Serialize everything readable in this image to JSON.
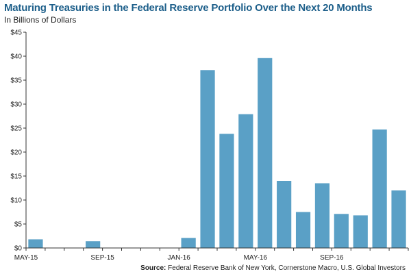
{
  "title": "Maturing Treasuries in the Federal Reserve Portfolio Over the Next 20 Months",
  "subtitle": "In Billions of Dollars",
  "source_label": "Source:",
  "source_text": "Federal Reserve Bank of New York, Cornerstone Macro, U.S. Global Investors",
  "chart_data": {
    "type": "bar",
    "title": "Maturing Treasuries in the Federal Reserve Portfolio Over the Next 20 Months",
    "ylabel": "In Billions of Dollars",
    "xlabel": "",
    "categories": [
      "MAY-15",
      "JUN-15",
      "JUL-15",
      "AUG-15",
      "SEP-15",
      "OCT-15",
      "NOV-15",
      "DEC-15",
      "JAN-16",
      "FEB-16",
      "MAR-16",
      "APR-16",
      "MAY-16",
      "JUN-16",
      "JUL-16",
      "AUG-16",
      "SEP-16",
      "OCT-16",
      "NOV-16",
      "DEC-16"
    ],
    "values": [
      1.8,
      0,
      0,
      1.4,
      0,
      0,
      0,
      0,
      2.1,
      37.1,
      23.8,
      27.9,
      39.6,
      14.0,
      7.5,
      13.5,
      7.1,
      6.8,
      24.7,
      12.0
    ],
    "x_tick_labels": [
      {
        "index": 0,
        "label": "MAY-15"
      },
      {
        "index": 4,
        "label": "SEP-15"
      },
      {
        "index": 8,
        "label": "JAN-16"
      },
      {
        "index": 12,
        "label": "MAY-16"
      },
      {
        "index": 16,
        "label": "SEP-16"
      }
    ],
    "y_ticks": [
      0,
      5,
      10,
      15,
      20,
      25,
      30,
      35,
      40,
      45
    ],
    "y_tick_labels": [
      "$0",
      "$5",
      "$10",
      "$15",
      "$20",
      "$25",
      "$30",
      "$35",
      "$40",
      "$45"
    ],
    "ylim": [
      0,
      45
    ],
    "grid": false,
    "bar_color": "#5aa0c6"
  }
}
